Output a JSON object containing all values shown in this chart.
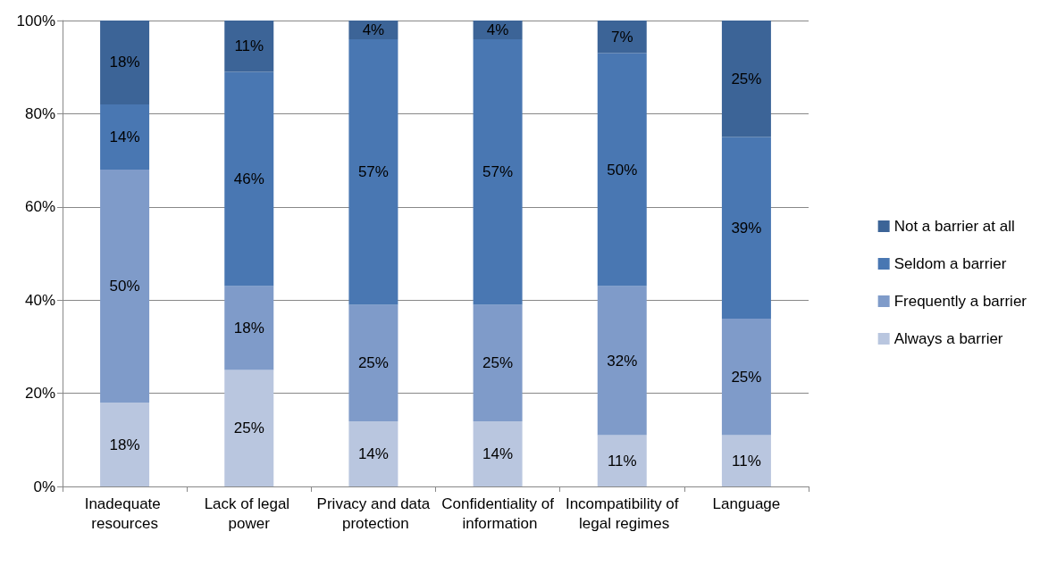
{
  "chart_data": {
    "type": "bar",
    "stacked": true,
    "categories": [
      "Inadequate resources",
      "Lack of legal power",
      "Privacy and data protection",
      "Confidentiality of information",
      "Incompatibility of legal regimes",
      "Language"
    ],
    "series": [
      {
        "name": "Always a barrier",
        "color": "#b9c6df",
        "values": [
          18,
          25,
          14,
          14,
          11,
          11
        ],
        "value_labels": [
          "18%",
          "25%",
          "14%",
          "14%",
          "11%",
          "11%"
        ]
      },
      {
        "name": "Frequently a barrier",
        "color": "#7f9bc9",
        "values": [
          50,
          18,
          25,
          25,
          32,
          25
        ],
        "value_labels": [
          "50%",
          "18%",
          "25%",
          "25%",
          "32%",
          "25%"
        ]
      },
      {
        "name": "Seldom a barrier",
        "color": "#4977b2",
        "values": [
          14,
          46,
          57,
          57,
          50,
          39
        ],
        "value_labels": [
          "14%",
          "46%",
          "57%",
          "57%",
          "50%",
          "39%"
        ]
      },
      {
        "name": "Not a barrier at all",
        "color": "#3c6497",
        "values": [
          18,
          11,
          4,
          4,
          7,
          25
        ],
        "value_labels": [
          "18%",
          "11%",
          "4%",
          "4%",
          "7%",
          "25%"
        ]
      }
    ],
    "ylim": [
      0,
      100
    ],
    "yticks": [
      {
        "value": 0,
        "label": "0%"
      },
      {
        "value": 20,
        "label": "20%"
      },
      {
        "value": 40,
        "label": "40%"
      },
      {
        "value": 60,
        "label": "60%"
      },
      {
        "value": 80,
        "label": "80%"
      },
      {
        "value": 100,
        "label": "100%"
      }
    ],
    "grid": "y",
    "legend": "right"
  }
}
